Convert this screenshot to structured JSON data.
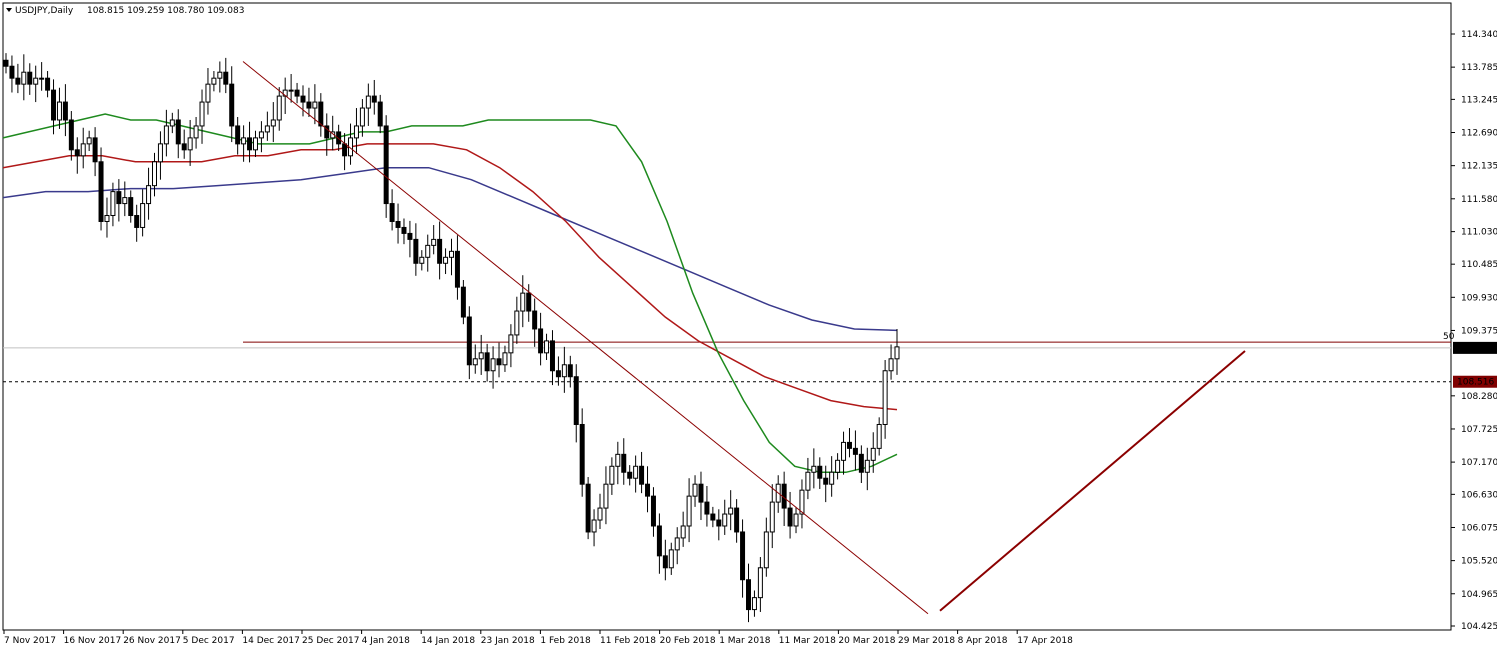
{
  "header": {
    "symbol": "USDJPY,Daily",
    "ohlc": "108.815 109.259 108.780 109.083"
  },
  "colors": {
    "background": "#ffffff",
    "candle": "#000000",
    "ma_fast": "#1e8a1e",
    "ma_mid": "#b01818",
    "ma_slow": "#3a3a8c",
    "trendline": "#8b0000",
    "current_price_tag": "#000000",
    "level_tag": "#800000"
  },
  "chart_data": {
    "type": "candlestick",
    "title": "USDJPY,Daily",
    "ylim": [
      104.425,
      114.62
    ],
    "y_ticks": [
      "114.340",
      "113.785",
      "113.245",
      "112.690",
      "112.135",
      "111.580",
      "111.030",
      "110.485",
      "109.930",
      "109.375",
      "108.280",
      "107.725",
      "107.170",
      "106.630",
      "106.075",
      "105.520",
      "104.965",
      "104.425"
    ],
    "x_ticks": [
      "7 Nov 2017",
      "16 Nov 2017",
      "26 Nov 2017",
      "5 Dec 2017",
      "14 Dec 2017",
      "25 Dec 2017",
      "4 Jan 2018",
      "14 Jan 2018",
      "23 Jan 2018",
      "1 Feb 2018",
      "11 Feb 2018",
      "20 Feb 2018",
      "1 Mar 2018",
      "11 Mar 2018",
      "20 Mar 2018",
      "29 Mar 2018",
      "8 Apr 2018",
      "17 Apr 2018"
    ],
    "current_price": "109.083",
    "marked_level": "108.516",
    "fib_label": "50",
    "fib_level": 109.18,
    "grid": false,
    "closes": [
      113.8,
      113.6,
      113.5,
      113.7,
      113.5,
      113.6,
      113.6,
      113.4,
      112.9,
      113.2,
      112.9,
      112.4,
      112.3,
      112.5,
      112.6,
      112.2,
      111.2,
      111.3,
      111.7,
      111.5,
      111.6,
      111.3,
      111.1,
      111.5,
      111.8,
      112.2,
      112.5,
      112.8,
      112.9,
      112.5,
      112.4,
      112.6,
      112.8,
      113.2,
      113.5,
      113.6,
      113.7,
      113.5,
      112.8,
      112.5,
      112.6,
      112.4,
      112.6,
      112.7,
      112.8,
      112.9,
      113.3,
      113.4,
      113.4,
      113.3,
      113.2,
      113.1,
      113.2,
      112.8,
      112.6,
      112.7,
      112.5,
      112.3,
      112.6,
      112.8,
      113.1,
      113.3,
      113.2,
      112.8,
      111.5,
      111.2,
      111.1,
      111.0,
      110.9,
      110.5,
      110.6,
      110.8,
      110.9,
      110.5,
      110.6,
      110.7,
      110.1,
      109.6,
      108.8,
      108.9,
      109.0,
      108.7,
      108.9,
      108.8,
      109.0,
      109.3,
      109.7,
      110.0,
      109.7,
      109.4,
      109.0,
      109.2,
      108.7,
      108.6,
      108.8,
      108.6,
      107.8,
      106.8,
      106.0,
      106.2,
      106.4,
      106.8,
      107.1,
      107.3,
      107.0,
      106.9,
      107.1,
      106.8,
      106.6,
      106.1,
      105.6,
      105.4,
      105.7,
      105.9,
      106.1,
      106.6,
      106.8,
      106.5,
      106.3,
      106.2,
      106.1,
      106.3,
      106.4,
      106.0,
      105.2,
      104.7,
      104.9,
      105.4,
      106.0,
      106.5,
      106.8,
      106.4,
      106.1,
      106.3,
      106.7,
      107.0,
      107.1,
      106.9,
      106.8,
      107.0,
      107.2,
      107.5,
      107.4,
      107.3,
      107.0,
      107.2,
      107.4,
      107.8,
      108.7,
      108.9,
      109.1
    ],
    "ma_fast_values": [
      112.6,
      112.7,
      112.8,
      112.9,
      113.0,
      112.9,
      112.9,
      112.8,
      112.7,
      112.6,
      112.5,
      112.5,
      112.5,
      112.6,
      112.7,
      112.7,
      112.8,
      112.8,
      112.8,
      112.9,
      112.9,
      112.9,
      112.9,
      112.9,
      112.8,
      112.2,
      111.2,
      110.0,
      109.0,
      108.2,
      107.5,
      107.1,
      107.0,
      107.0,
      107.1,
      107.3
    ],
    "ma_mid_values": [
      112.1,
      112.2,
      112.3,
      112.3,
      112.2,
      112.2,
      112.2,
      112.3,
      112.3,
      112.4,
      112.4,
      112.5,
      112.5,
      112.5,
      112.4,
      112.1,
      111.7,
      111.2,
      110.6,
      110.1,
      109.6,
      109.2,
      108.9,
      108.6,
      108.4,
      108.2,
      108.1,
      108.05
    ],
    "ma_slow_values": [
      111.6,
      111.7,
      111.7,
      111.75,
      111.75,
      111.8,
      111.85,
      111.9,
      112.0,
      112.1,
      112.1,
      111.9,
      111.6,
      111.3,
      111.0,
      110.7,
      110.4,
      110.1,
      109.8,
      109.55,
      109.4,
      109.375
    ]
  }
}
